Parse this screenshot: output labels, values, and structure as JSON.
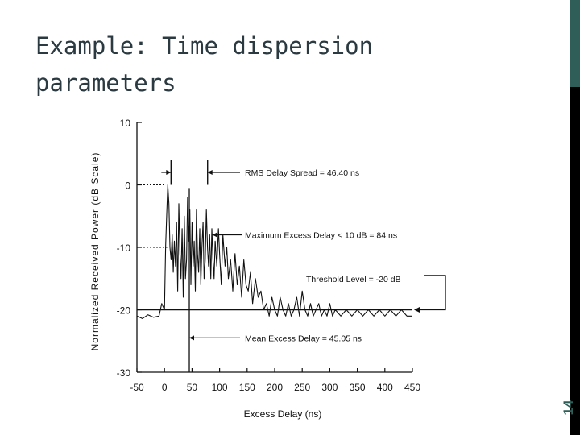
{
  "slide": {
    "title": "Example: Time dispersion parameters",
    "page_number": "14"
  },
  "colors": {
    "accent": "#2f5d57",
    "title_text": "#2b3a40",
    "plot_ink": "#111111"
  },
  "chart_data": {
    "type": "line",
    "xlabel": "Excess Delay (ns)",
    "ylabel": "Normalized Received Power (dB Scale)",
    "xlim": [
      -50,
      450
    ],
    "ylim": [
      -30,
      10
    ],
    "xticks": [
      -50,
      0,
      50,
      100,
      150,
      200,
      250,
      300,
      350,
      400,
      450
    ],
    "yticks": [
      10,
      0,
      -10,
      -20,
      -30
    ],
    "threshold_db": -20,
    "mean_excess_delay_ns": 45.05,
    "rms_delay_spread_ns": 46.4,
    "max_excess_delay_ns": 84,
    "series": [
      {
        "x": [
          -50,
          -40,
          -30,
          -20,
          -10,
          -5,
          0,
          2,
          4,
          6,
          8,
          10,
          12,
          14,
          16,
          18,
          20,
          22,
          24,
          26,
          28,
          30,
          32,
          34,
          36,
          38,
          40,
          42,
          44,
          46,
          48,
          50,
          52,
          54,
          56,
          58,
          60,
          62,
          64,
          66,
          68,
          70,
          72,
          74,
          76,
          78,
          80,
          82,
          84,
          86,
          88,
          90,
          92,
          95,
          98,
          100,
          103,
          106,
          110,
          113,
          116,
          120,
          124,
          128,
          132,
          136,
          140,
          144,
          148,
          152,
          156,
          160,
          165,
          170,
          175,
          180,
          185,
          190,
          195,
          200,
          205,
          210,
          215,
          220,
          225,
          230,
          235,
          240,
          245,
          250,
          255,
          260,
          265,
          270,
          275,
          280,
          285,
          290,
          295,
          300,
          305,
          310,
          320,
          330,
          340,
          350,
          360,
          370,
          380,
          390,
          400,
          410,
          420,
          430,
          440,
          450
        ],
        "y": [
          -21,
          -21.4,
          -20.8,
          -21.2,
          -21,
          -19,
          -20,
          -10,
          -5,
          0,
          -3,
          -10,
          -12,
          -8,
          -14,
          -9,
          -13,
          -6,
          -17,
          -3,
          -11,
          -15,
          -7,
          -18,
          -5,
          -15,
          -12,
          -2,
          -9,
          -4,
          -16,
          -6,
          -13,
          -9,
          -17,
          -4,
          -11,
          -14,
          -7,
          -16,
          -10,
          -6,
          -15,
          -12,
          -4,
          -10,
          -13,
          -8,
          -15,
          -7,
          -12,
          -15,
          -9,
          -13,
          -7,
          -11,
          -16,
          -8,
          -13,
          -10,
          -15,
          -12,
          -17,
          -11,
          -16,
          -13,
          -18,
          -12,
          -16,
          -17,
          -14,
          -19,
          -15,
          -18,
          -17,
          -20,
          -19,
          -21,
          -18,
          -20,
          -21,
          -18,
          -20,
          -21,
          -19,
          -21,
          -20,
          -18,
          -21,
          -17,
          -20,
          -21,
          -19,
          -21,
          -20,
          -19,
          -21,
          -20,
          -21,
          -19,
          -21,
          -20,
          -21,
          -20,
          -21,
          -20,
          -21,
          -20,
          -21,
          -20,
          -21,
          -20,
          -21,
          -20,
          -21,
          -21
        ]
      }
    ],
    "annotations": [
      {
        "text": "RMS Delay Spread = 46.40 ns"
      },
      {
        "text": "Maximum Excess Delay < 10 dB = 84 ns"
      },
      {
        "text": "Threshold Level = -20 dB"
      },
      {
        "text": "Mean Excess Delay = 45.05 ns"
      }
    ],
    "grid": false,
    "legend": "none"
  }
}
